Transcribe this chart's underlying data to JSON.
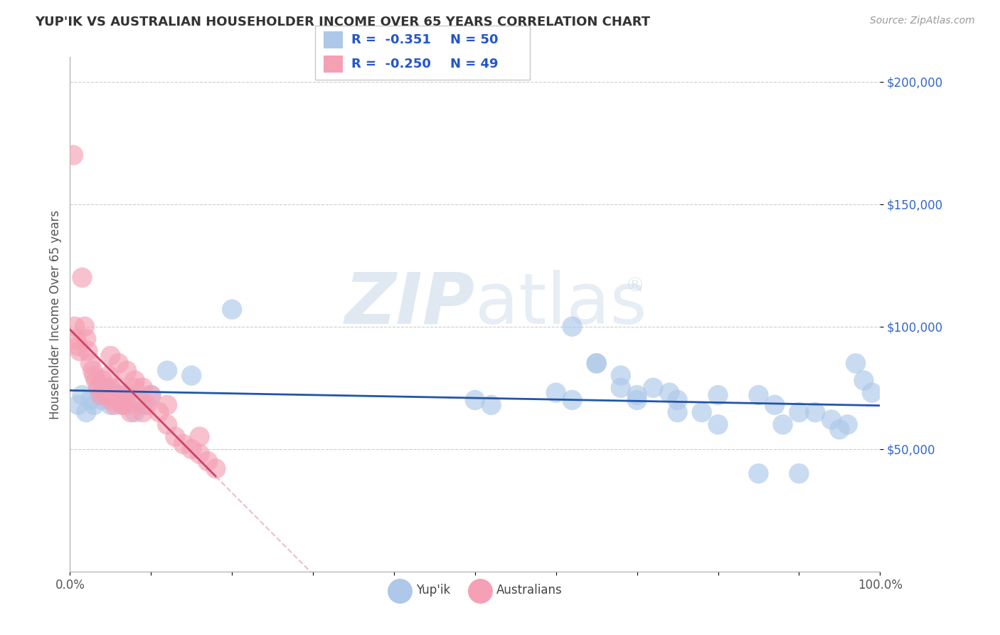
{
  "title": "YUP'IK VS AUSTRALIAN HOUSEHOLDER INCOME OVER 65 YEARS CORRELATION CHART",
  "source": "Source: ZipAtlas.com",
  "ylabel": "Householder Income Over 65 years",
  "xlim": [
    0.0,
    1.0
  ],
  "ylim": [
    0,
    210000
  ],
  "xticks": [
    0.0,
    0.1,
    0.2,
    0.3,
    0.4,
    0.5,
    0.6,
    0.7,
    0.8,
    0.9,
    1.0
  ],
  "xticklabels": [
    "0.0%",
    "",
    "",
    "",
    "",
    "",
    "",
    "",
    "",
    "",
    "100.0%"
  ],
  "ytick_positions": [
    50000,
    100000,
    150000,
    200000
  ],
  "ytick_labels": [
    "$50,000",
    "$100,000",
    "$150,000",
    "$200,000"
  ],
  "watermark_zip": "ZIP",
  "watermark_atlas": "atlas",
  "legend_r1": "R =  -0.351",
  "legend_n1": "N = 50",
  "legend_r2": "R =  -0.250",
  "legend_n2": "N = 49",
  "color_yupik": "#adc8e8",
  "color_australians": "#f5a0b5",
  "color_line_yupik": "#2255aa",
  "color_line_australians": "#cc4466",
  "color_line_australians_dashed": "#e8a0b8",
  "legend_labels": [
    "Yup'ik",
    "Australians"
  ],
  "yupik_x": [
    0.01,
    0.015,
    0.02,
    0.025,
    0.03,
    0.035,
    0.04,
    0.045,
    0.05,
    0.055,
    0.06,
    0.065,
    0.07,
    0.08,
    0.09,
    0.1,
    0.12,
    0.15,
    0.2,
    0.5,
    0.52,
    0.6,
    0.62,
    0.65,
    0.68,
    0.7,
    0.72,
    0.74,
    0.75,
    0.78,
    0.8,
    0.85,
    0.87,
    0.88,
    0.9,
    0.92,
    0.94,
    0.95,
    0.96,
    0.97,
    0.98,
    0.99,
    0.62,
    0.65,
    0.68,
    0.7,
    0.75,
    0.8,
    0.85,
    0.9
  ],
  "yupik_y": [
    68000,
    72000,
    65000,
    70000,
    68000,
    75000,
    70000,
    72000,
    68000,
    73000,
    70000,
    68000,
    72000,
    65000,
    68000,
    72000,
    82000,
    80000,
    107000,
    70000,
    68000,
    73000,
    70000,
    85000,
    80000,
    72000,
    75000,
    73000,
    70000,
    65000,
    72000,
    72000,
    68000,
    60000,
    65000,
    65000,
    62000,
    58000,
    60000,
    85000,
    78000,
    73000,
    100000,
    85000,
    75000,
    70000,
    65000,
    60000,
    40000,
    40000
  ],
  "australians_x": [
    0.004,
    0.006,
    0.008,
    0.01,
    0.012,
    0.015,
    0.018,
    0.02,
    0.022,
    0.025,
    0.028,
    0.03,
    0.032,
    0.035,
    0.038,
    0.04,
    0.042,
    0.045,
    0.048,
    0.05,
    0.052,
    0.055,
    0.058,
    0.06,
    0.062,
    0.065,
    0.068,
    0.07,
    0.075,
    0.08,
    0.085,
    0.09,
    0.095,
    0.1,
    0.11,
    0.12,
    0.13,
    0.14,
    0.15,
    0.16,
    0.17,
    0.18,
    0.05,
    0.06,
    0.07,
    0.08,
    0.09,
    0.12,
    0.16
  ],
  "australians_y": [
    170000,
    100000,
    95000,
    92000,
    90000,
    120000,
    100000,
    95000,
    90000,
    85000,
    82000,
    80000,
    78000,
    75000,
    72000,
    78000,
    75000,
    72000,
    80000,
    75000,
    70000,
    68000,
    72000,
    75000,
    70000,
    68000,
    72000,
    68000,
    65000,
    75000,
    70000,
    65000,
    68000,
    72000,
    65000,
    60000,
    55000,
    52000,
    50000,
    48000,
    45000,
    42000,
    88000,
    85000,
    82000,
    78000,
    75000,
    68000,
    55000
  ]
}
